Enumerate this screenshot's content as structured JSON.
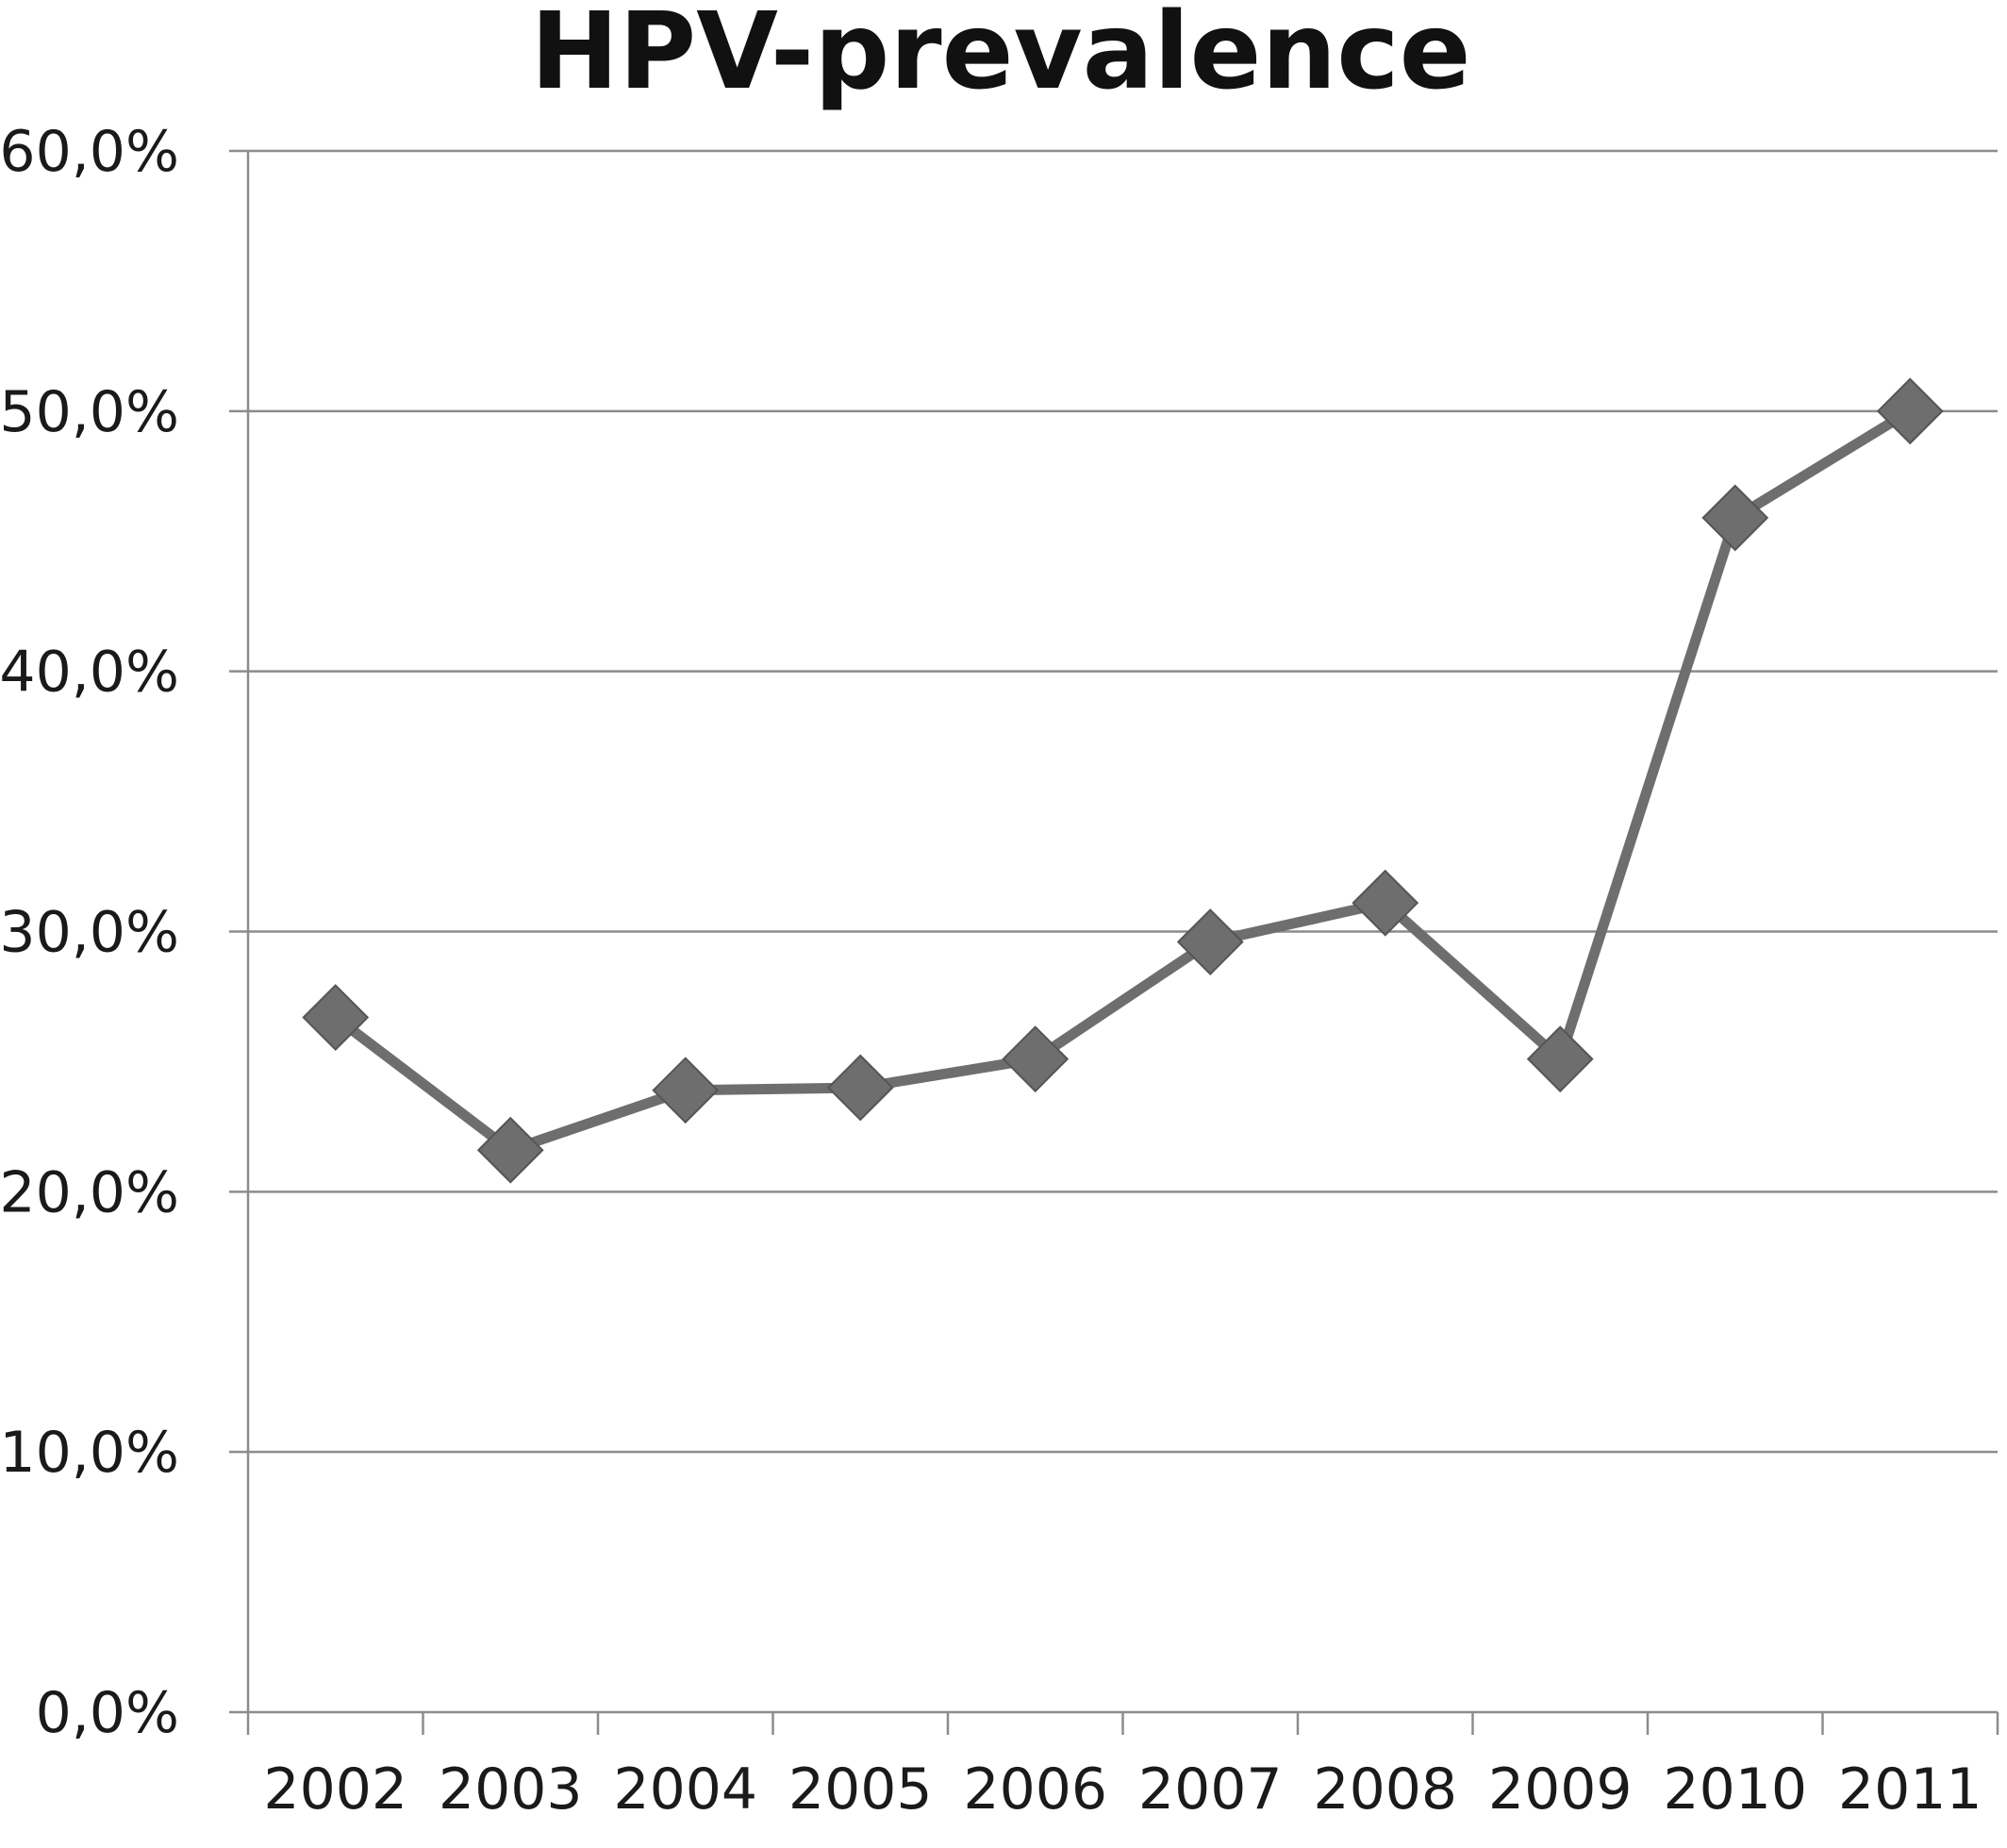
{
  "chart_data": {
    "type": "line",
    "title": "HPV-prevalence",
    "xlabel": "",
    "ylabel": "",
    "categories": [
      "2002",
      "2003",
      "2004",
      "2005",
      "2006",
      "2007",
      "2008",
      "2009",
      "2010",
      "2011"
    ],
    "series": [
      {
        "values": [
          26.7,
          21.6,
          23.9,
          24.0,
          25.1,
          29.6,
          31.1,
          25.1,
          45.9,
          50.0
        ],
        "color": "#6e6e6e",
        "marker": "diamond"
      }
    ],
    "ylim": [
      0,
      60
    ],
    "yticks": [
      0,
      10,
      20,
      30,
      40,
      50,
      60
    ],
    "ytick_labels": [
      "0,0%",
      "10,0%",
      "20,0%",
      "30,0%",
      "40,0%",
      "50,0%",
      "60,0%"
    ],
    "grid": true,
    "legend": "none"
  }
}
